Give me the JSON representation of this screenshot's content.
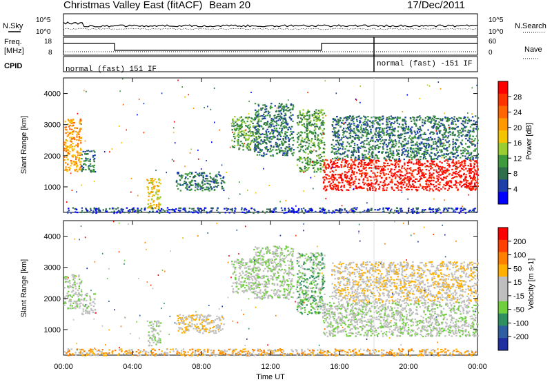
{
  "header": {
    "title": "Christmas Valley East (fitACF)",
    "beam": "Beam 20",
    "date": "17/Dec/2011"
  },
  "status_panels": {
    "nsky_label": "N.Sky",
    "nsearch_label": "N.Search",
    "freq_label_line1": "Freq.",
    "freq_label_line2": "[MHz]",
    "nave_label": "Nave",
    "cpid_label": "CPID",
    "left_ticks": [
      "10^5",
      "10^0"
    ],
    "right_ticks": [
      "10^5",
      "10^0"
    ],
    "freq_ticks": [
      "18",
      "8"
    ],
    "nave_ticks": [
      "60",
      "0"
    ],
    "cpid_left": "normal (fast) 151 IF",
    "cpid_right": "normal (fast) -151 IF"
  },
  "colors": {
    "power_scale": [
      "#0000ff",
      "#1f3fa8",
      "#2e6e4a",
      "#3d9a3d",
      "#9acd32",
      "#f5c400",
      "#ff9900",
      "#ff6600",
      "#ff3300",
      "#ff0000"
    ],
    "velocity_scale": [
      "#1f2f9f",
      "#2f5fa0",
      "#2f8f5f",
      "#6fcf3f",
      "#bfbfbf",
      "#bfbfbf",
      "#ffb000",
      "#ff8000",
      "#ff4000",
      "#ff0000"
    ]
  },
  "chart_data": [
    {
      "type": "heatmap",
      "name": "Power",
      "ylabel": "Slant Range [km]",
      "colorbar_label": "Power [dB]",
      "colorbar_ticks": [
        "28",
        "24",
        "20",
        "16",
        "12",
        "8",
        "4"
      ],
      "y_ticks": [
        "4000",
        "3000",
        "2000",
        "1000"
      ],
      "x_ticks": [
        "00:00",
        "04:00",
        "08:00",
        "12:00",
        "16:00",
        "20:00",
        "00:00"
      ],
      "ylim": [
        180,
        4500
      ],
      "xlim": [
        0,
        24
      ],
      "regions": [
        {
          "t0": 0.0,
          "t1": 1.0,
          "r0": 1500,
          "r1": 3200,
          "level": 6
        },
        {
          "t0": 1.0,
          "t1": 1.8,
          "r0": 1500,
          "r1": 2200,
          "level": 2
        },
        {
          "t0": 4.8,
          "t1": 5.6,
          "r0": 300,
          "r1": 1300,
          "level": 5
        },
        {
          "t0": 6.5,
          "t1": 9.3,
          "r0": 900,
          "r1": 1500,
          "level": 2
        },
        {
          "t0": 9.7,
          "t1": 11.3,
          "r0": 2200,
          "r1": 3300,
          "level": 3
        },
        {
          "t0": 11.0,
          "t1": 13.3,
          "r0": 2000,
          "r1": 3700,
          "level": 2
        },
        {
          "t0": 13.5,
          "t1": 15.1,
          "r0": 1500,
          "r1": 3500,
          "level": 3
        },
        {
          "t0": 15.0,
          "t1": 24.0,
          "r0": 900,
          "r1": 1900,
          "level": 9
        },
        {
          "t0": 15.5,
          "t1": 24.0,
          "r0": 1900,
          "r1": 3300,
          "level": 2
        },
        {
          "t0": 0.0,
          "t1": 24.0,
          "r0": 180,
          "r1": 350,
          "level": 1
        }
      ]
    },
    {
      "type": "heatmap",
      "name": "Velocity",
      "ylabel": "Slant Range [km]",
      "xlabel": "Time UT",
      "colorbar_label": "Velocity [m s-1]",
      "colorbar_ticks": [
        "200",
        "100",
        "50",
        "15",
        "-15",
        "-50",
        "-100",
        "-200"
      ],
      "y_ticks": [
        "4000",
        "3000",
        "2000",
        "1000"
      ],
      "x_ticks": [
        "00:00",
        "04:00",
        "08:00",
        "12:00",
        "16:00",
        "20:00",
        "00:00"
      ],
      "ylim": [
        180,
        4500
      ],
      "xlim": [
        0,
        24
      ],
      "regions": [
        {
          "t0": 0.0,
          "t1": 1.0,
          "r0": 1700,
          "r1": 2800,
          "level": 4
        },
        {
          "t0": 1.0,
          "t1": 1.8,
          "r0": 1500,
          "r1": 2200,
          "level": 4
        },
        {
          "t0": 4.8,
          "t1": 5.6,
          "r0": 500,
          "r1": 1300,
          "level": 4
        },
        {
          "t0": 6.5,
          "t1": 9.3,
          "r0": 900,
          "r1": 1500,
          "level": 5
        },
        {
          "t0": 9.7,
          "t1": 11.3,
          "r0": 2200,
          "r1": 3300,
          "level": 4
        },
        {
          "t0": 11.0,
          "t1": 13.3,
          "r0": 2000,
          "r1": 3700,
          "level": 4
        },
        {
          "t0": 13.5,
          "t1": 15.1,
          "r0": 1500,
          "r1": 3500,
          "level": 3
        },
        {
          "t0": 15.0,
          "t1": 24.0,
          "r0": 800,
          "r1": 1900,
          "level": 4
        },
        {
          "t0": 15.5,
          "t1": 24.0,
          "r0": 1900,
          "r1": 3200,
          "level": 5
        },
        {
          "t0": 0.0,
          "t1": 24.0,
          "r0": 180,
          "r1": 400,
          "level": 6
        }
      ]
    }
  ]
}
